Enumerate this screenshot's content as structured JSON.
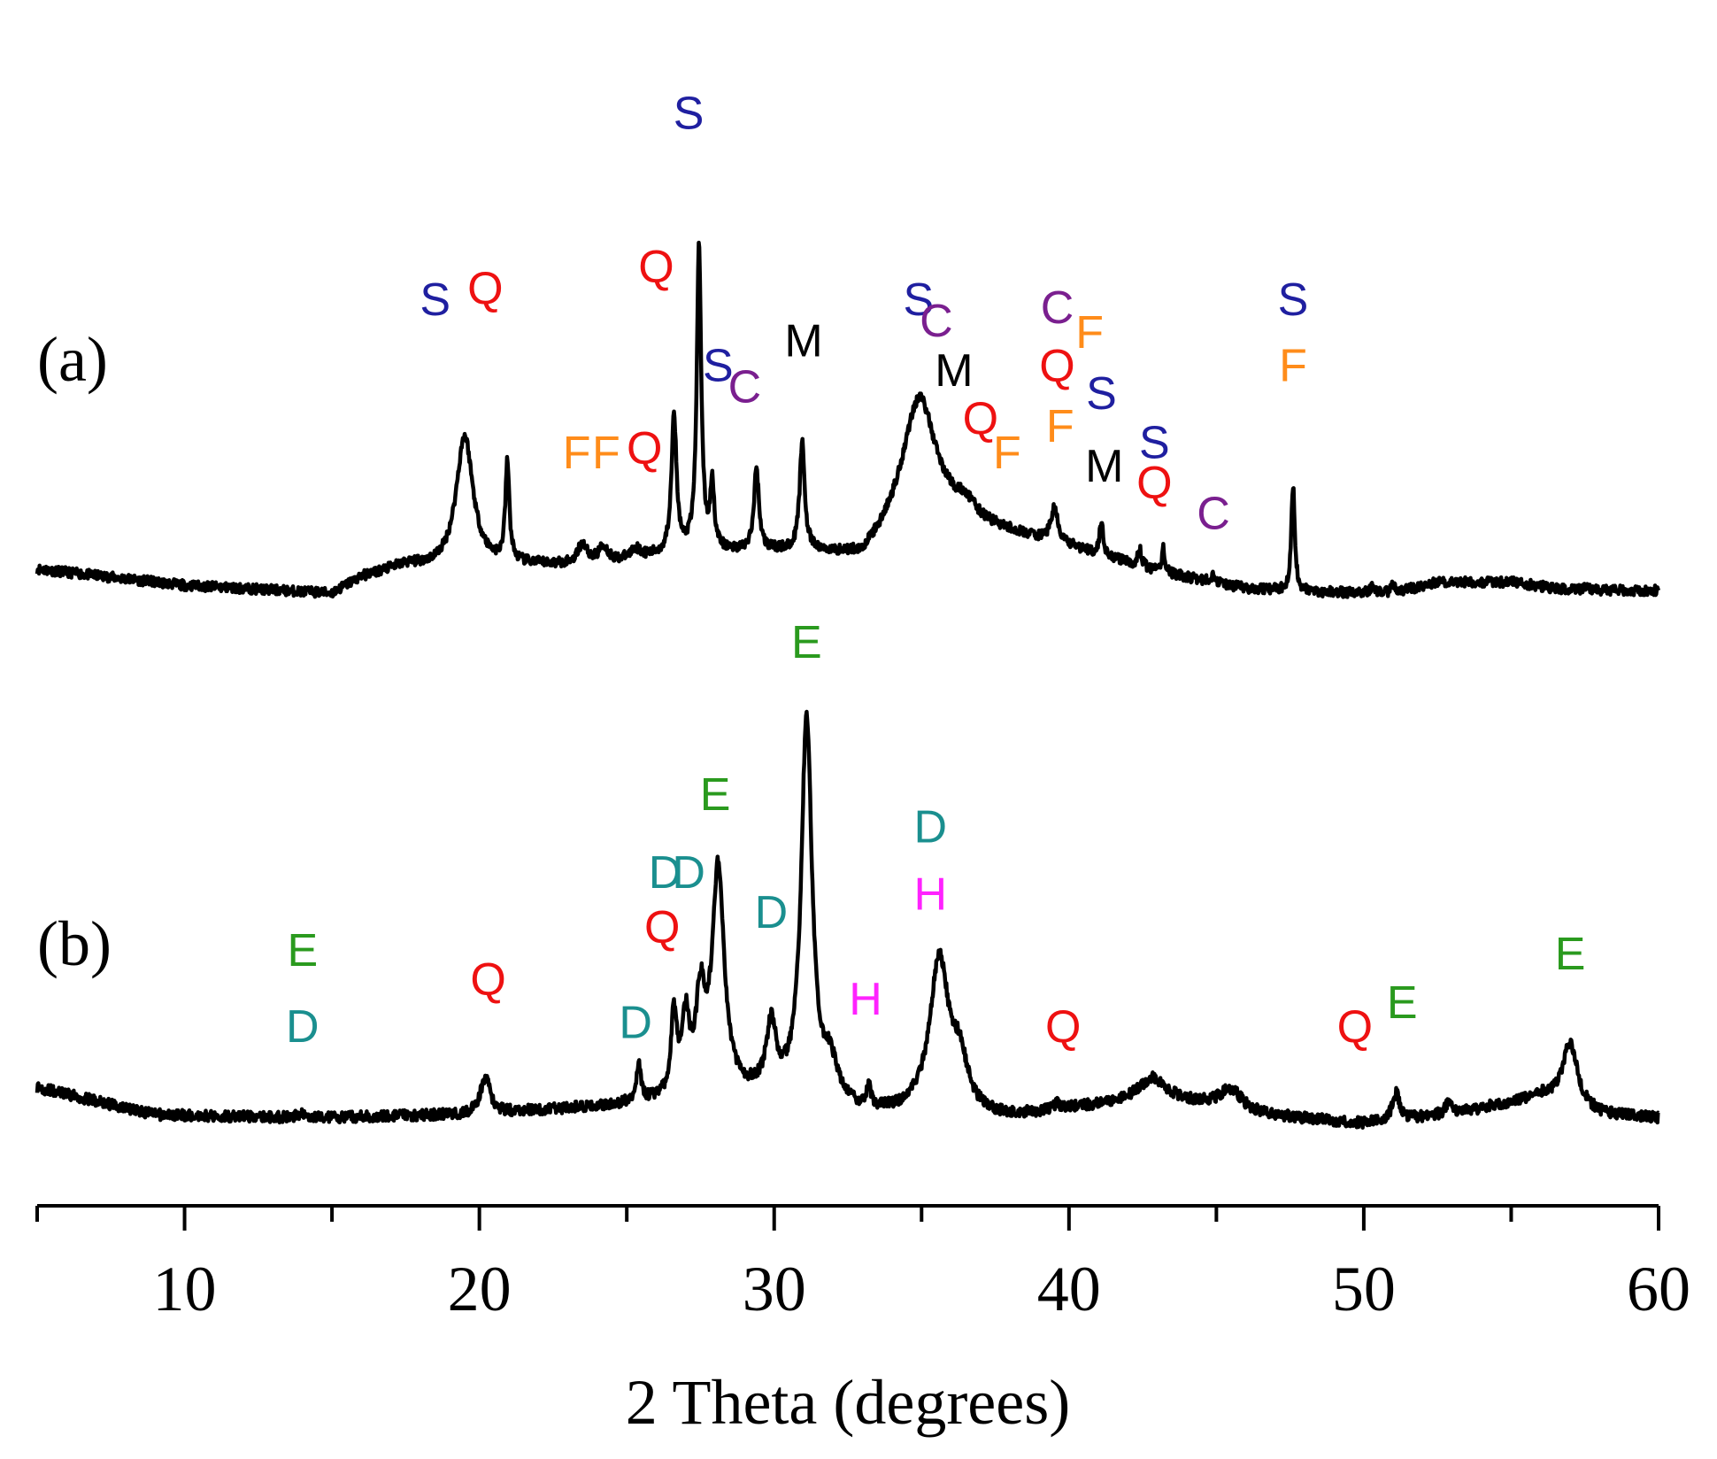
{
  "chart_data": {
    "type": "line",
    "xlabel": "2 Theta (degrees)",
    "ylabel": "",
    "xlim": [
      5,
      60
    ],
    "x_ticks": [
      10,
      20,
      30,
      40,
      50,
      60
    ],
    "grid": false,
    "legend": "none",
    "phase_colors": {
      "S": "#1f1fa0",
      "Q": "#ee1111",
      "F": "#ff8c1a",
      "C": "#7a1f8f",
      "M": "#000000",
      "E": "#2a9a1e",
      "D": "#1a8f8f",
      "H": "#ff22ff"
    },
    "series": [
      {
        "name": "(a)",
        "color": "#000000",
        "baseline": [
          [
            5,
            0.2
          ],
          [
            10,
            0.1
          ],
          [
            15,
            0.05
          ],
          [
            16,
            0.15
          ],
          [
            17.5,
            0.22
          ],
          [
            18.8,
            0.2
          ],
          [
            21,
            0.22
          ],
          [
            24,
            0.22
          ],
          [
            27,
            0.3
          ],
          [
            31,
            0.3
          ],
          [
            33,
            0.25
          ],
          [
            35,
            0.55
          ],
          [
            37,
            0.45
          ],
          [
            40,
            0.33
          ],
          [
            43,
            0.18
          ],
          [
            46,
            0.08
          ],
          [
            48,
            0.06
          ],
          [
            51,
            0.05
          ],
          [
            52.5,
            0.12
          ],
          [
            55,
            0.12
          ],
          [
            57,
            0.07
          ],
          [
            60,
            0.07
          ]
        ],
        "peaks": [
          {
            "x": 19.5,
            "h": 0.8,
            "w": 0.35
          },
          {
            "x": 20.95,
            "h": 0.6,
            "w": 0.08
          },
          {
            "x": 23.5,
            "h": 0.12,
            "w": 0.2
          },
          {
            "x": 24.2,
            "h": 0.1,
            "w": 0.2
          },
          {
            "x": 25.3,
            "h": 0.06,
            "w": 0.2
          },
          {
            "x": 26.6,
            "h": 0.85,
            "w": 0.1
          },
          {
            "x": 27.45,
            "h": 1.85,
            "w": 0.09
          },
          {
            "x": 27.9,
            "h": 0.4,
            "w": 0.08
          },
          {
            "x": 29.4,
            "h": 0.5,
            "w": 0.1
          },
          {
            "x": 30.95,
            "h": 0.65,
            "w": 0.1
          },
          {
            "x": 34.9,
            "h": 0.7,
            "w": 0.7
          },
          {
            "x": 36.5,
            "h": 0.08,
            "w": 0.4
          },
          {
            "x": 39.5,
            "h": 0.2,
            "w": 0.15
          },
          {
            "x": 41.1,
            "h": 0.2,
            "w": 0.08
          },
          {
            "x": 42.4,
            "h": 0.1,
            "w": 0.08
          },
          {
            "x": 43.2,
            "h": 0.15,
            "w": 0.06
          },
          {
            "x": 44.9,
            "h": 0.05,
            "w": 0.08
          },
          {
            "x": 47.6,
            "h": 0.65,
            "w": 0.07
          },
          {
            "x": 50.3,
            "h": 0.04,
            "w": 0.1
          },
          {
            "x": 51.0,
            "h": 0.05,
            "w": 0.1
          },
          {
            "x": 57.5,
            "h": 0.03,
            "w": 0.1
          }
        ],
        "annotations": [
          {
            "text": "S",
            "phase": "S",
            "x": 18.5,
            "y": 1.85
          },
          {
            "text": "Q",
            "phase": "Q",
            "x": 20.2,
            "y": 1.92
          },
          {
            "text": "F",
            "phase": "F",
            "x": 23.3,
            "y": 0.92
          },
          {
            "text": "F",
            "phase": "F",
            "x": 24.3,
            "y": 0.92
          },
          {
            "text": "Q",
            "phase": "Q",
            "x": 25.6,
            "y": 0.95
          },
          {
            "text": "Q",
            "phase": "Q",
            "x": 26.0,
            "y": 2.05
          },
          {
            "text": "S",
            "phase": "S",
            "x": 27.1,
            "y": 2.98
          },
          {
            "text": "S",
            "phase": "S",
            "x": 28.1,
            "y": 1.45
          },
          {
            "text": "C",
            "phase": "C",
            "x": 29.0,
            "y": 1.32
          },
          {
            "text": "M",
            "phase": "M",
            "x": 31.0,
            "y": 1.6
          },
          {
            "text": "S",
            "phase": "S",
            "x": 34.9,
            "y": 1.85
          },
          {
            "text": "C",
            "phase": "C",
            "x": 35.5,
            "y": 1.72
          },
          {
            "text": "M",
            "phase": "M",
            "x": 36.1,
            "y": 1.42
          },
          {
            "text": "Q",
            "phase": "Q",
            "x": 37.0,
            "y": 1.13
          },
          {
            "text": "F",
            "phase": "F",
            "x": 37.9,
            "y": 0.92
          },
          {
            "text": "C",
            "phase": "C",
            "x": 39.6,
            "y": 1.8
          },
          {
            "text": "F",
            "phase": "F",
            "x": 40.7,
            "y": 1.65
          },
          {
            "text": "Q",
            "phase": "Q",
            "x": 39.6,
            "y": 1.45
          },
          {
            "text": "F",
            "phase": "F",
            "x": 39.7,
            "y": 1.08
          },
          {
            "text": "S",
            "phase": "S",
            "x": 41.1,
            "y": 1.28
          },
          {
            "text": "M",
            "phase": "M",
            "x": 41.2,
            "y": 0.84
          },
          {
            "text": "S",
            "phase": "S",
            "x": 42.9,
            "y": 0.98
          },
          {
            "text": "Q",
            "phase": "Q",
            "x": 42.9,
            "y": 0.74
          },
          {
            "text": "C",
            "phase": "C",
            "x": 44.9,
            "y": 0.55
          },
          {
            "text": "S",
            "phase": "S",
            "x": 47.6,
            "y": 1.85
          },
          {
            "text": "F",
            "phase": "F",
            "x": 47.6,
            "y": 1.45
          }
        ]
      },
      {
        "name": "(b)",
        "color": "#000000",
        "baseline": [
          [
            5,
            0.35
          ],
          [
            9,
            0.2
          ],
          [
            14,
            0.18
          ],
          [
            20,
            0.2
          ],
          [
            25,
            0.25
          ],
          [
            30,
            0.3
          ],
          [
            33,
            0.2
          ],
          [
            38,
            0.18
          ],
          [
            41,
            0.25
          ],
          [
            43,
            0.3
          ],
          [
            46,
            0.2
          ],
          [
            50,
            0.15
          ],
          [
            53,
            0.2
          ],
          [
            56,
            0.3
          ],
          [
            58,
            0.2
          ],
          [
            60,
            0.18
          ]
        ],
        "peaks": [
          {
            "x": 14.0,
            "h": 0.03,
            "w": 0.2
          },
          {
            "x": 20.2,
            "h": 0.2,
            "w": 0.2
          },
          {
            "x": 25.4,
            "h": 0.2,
            "w": 0.1
          },
          {
            "x": 26.6,
            "h": 0.45,
            "w": 0.12
          },
          {
            "x": 27.0,
            "h": 0.4,
            "w": 0.15
          },
          {
            "x": 27.5,
            "h": 0.5,
            "w": 0.18
          },
          {
            "x": 28.1,
            "h": 1.25,
            "w": 0.25
          },
          {
            "x": 29.9,
            "h": 0.35,
            "w": 0.2
          },
          {
            "x": 31.1,
            "h": 2.1,
            "w": 0.22
          },
          {
            "x": 31.9,
            "h": 0.2,
            "w": 0.3
          },
          {
            "x": 33.2,
            "h": 0.12,
            "w": 0.08
          },
          {
            "x": 35.6,
            "h": 0.85,
            "w": 0.4
          },
          {
            "x": 36.3,
            "h": 0.25,
            "w": 0.3
          },
          {
            "x": 39.6,
            "h": 0.04,
            "w": 0.1
          },
          {
            "x": 42.8,
            "h": 0.1,
            "w": 0.5
          },
          {
            "x": 45.5,
            "h": 0.12,
            "w": 0.5
          },
          {
            "x": 51.1,
            "h": 0.15,
            "w": 0.15
          },
          {
            "x": 52.9,
            "h": 0.07,
            "w": 0.15
          },
          {
            "x": 57.0,
            "h": 0.35,
            "w": 0.3
          }
        ],
        "annotations": [
          {
            "text": "E",
            "phase": "E",
            "x": 14.0,
            "y": 1.12
          },
          {
            "text": "D",
            "phase": "D",
            "x": 14.0,
            "y": 0.7
          },
          {
            "text": "Q",
            "phase": "Q",
            "x": 20.3,
            "y": 0.96
          },
          {
            "text": "D",
            "phase": "D",
            "x": 25.3,
            "y": 0.72
          },
          {
            "text": "Q",
            "phase": "Q",
            "x": 26.2,
            "y": 1.25
          },
          {
            "text": "D",
            "phase": "D",
            "x": 26.3,
            "y": 1.55
          },
          {
            "text": "D",
            "phase": "D",
            "x": 27.1,
            "y": 1.55
          },
          {
            "text": "E",
            "phase": "E",
            "x": 28.0,
            "y": 1.98
          },
          {
            "text": "D",
            "phase": "D",
            "x": 29.9,
            "y": 1.33
          },
          {
            "text": "E",
            "phase": "E",
            "x": 31.1,
            "y": 2.82
          },
          {
            "text": "H",
            "phase": "H",
            "x": 33.1,
            "y": 0.85
          },
          {
            "text": "D",
            "phase": "D",
            "x": 35.3,
            "y": 1.8
          },
          {
            "text": "H",
            "phase": "H",
            "x": 35.3,
            "y": 1.43
          },
          {
            "text": "Q",
            "phase": "Q",
            "x": 39.8,
            "y": 0.7
          },
          {
            "text": "Q",
            "phase": "Q",
            "x": 49.7,
            "y": 0.7
          },
          {
            "text": "E",
            "phase": "E",
            "x": 51.3,
            "y": 0.83
          },
          {
            "text": "E",
            "phase": "E",
            "x": 57.0,
            "y": 1.1
          }
        ]
      }
    ]
  }
}
